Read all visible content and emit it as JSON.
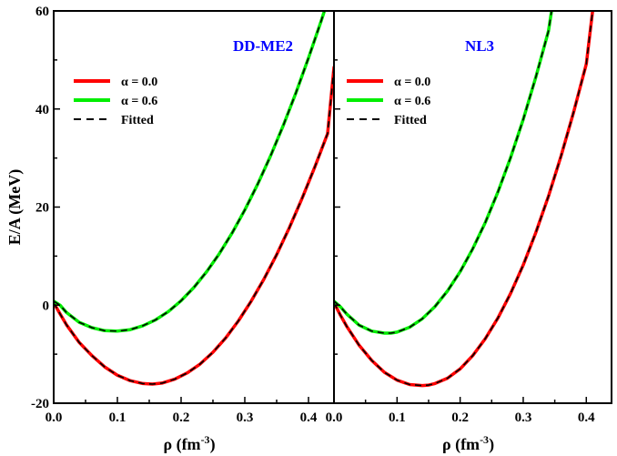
{
  "chart_data": [
    {
      "type": "line",
      "title": "DD-ME2",
      "title_color": "#0000ff",
      "xlabel": "ρ (fm",
      "xlabel_sup": "-3",
      "xlabel_tail": ")",
      "ylabel": "E/A (MeV)",
      "xlim": [
        0.0,
        0.44
      ],
      "ylim": [
        -20,
        60
      ],
      "x_ticks": [
        "0.0",
        "0.1",
        "0.2",
        "0.3",
        "0.4"
      ],
      "y_ticks": [
        "-20",
        "0",
        "20",
        "40",
        "60"
      ],
      "grid": false,
      "legend_position": "top-left",
      "legend": [
        "α = 0.0",
        "α = 0.6",
        "Fitted"
      ],
      "series": [
        {
          "name": "α = 0.0",
          "color": "#ff0000",
          "x": [
            0.0,
            0.01,
            0.02,
            0.04,
            0.06,
            0.08,
            0.1,
            0.12,
            0.14,
            0.155,
            0.17,
            0.19,
            0.21,
            0.23,
            0.25,
            0.27,
            0.29,
            0.31,
            0.33,
            0.35,
            0.37,
            0.39,
            0.41,
            0.43,
            0.44
          ],
          "y": [
            0.5,
            -1.8,
            -4.0,
            -7.6,
            -10.3,
            -12.6,
            -14.3,
            -15.4,
            -16.0,
            -16.1,
            -15.9,
            -15.1,
            -13.8,
            -12.0,
            -9.6,
            -6.7,
            -3.2,
            0.8,
            5.3,
            10.3,
            15.8,
            21.8,
            28.2,
            35.0,
            48.5
          ]
        },
        {
          "name": "α = 0.6",
          "color": "#00ee00",
          "x": [
            0.0,
            0.01,
            0.02,
            0.04,
            0.06,
            0.08,
            0.1,
            0.12,
            0.14,
            0.16,
            0.18,
            0.2,
            0.22,
            0.24,
            0.26,
            0.28,
            0.3,
            0.32,
            0.34,
            0.36,
            0.38,
            0.4,
            0.42,
            0.43
          ],
          "y": [
            0.8,
            0.0,
            -1.5,
            -3.5,
            -4.6,
            -5.2,
            -5.3,
            -5.0,
            -4.2,
            -3.0,
            -1.3,
            0.9,
            3.6,
            6.8,
            10.5,
            14.7,
            19.4,
            24.6,
            30.3,
            36.5,
            43.2,
            50.4,
            58.0,
            62.0
          ]
        }
      ],
      "fitted": {
        "name": "Fitted",
        "color": "#000000",
        "style": "dashed"
      }
    },
    {
      "type": "line",
      "title": "NL3",
      "title_color": "#0000ff",
      "xlabel": "ρ (fm",
      "xlabel_sup": "-3",
      "xlabel_tail": ")",
      "xlim": [
        0.0,
        0.44
      ],
      "ylim": [
        -20,
        60
      ],
      "x_ticks": [
        "0.0",
        "0.1",
        "0.2",
        "0.3",
        "0.4"
      ],
      "grid": false,
      "legend_position": "top-left",
      "legend": [
        "α = 0.0",
        "α = 0.6",
        "Fitted"
      ],
      "series": [
        {
          "name": "α = 0.0",
          "color": "#ff0000",
          "x": [
            0.0,
            0.01,
            0.02,
            0.04,
            0.06,
            0.08,
            0.1,
            0.12,
            0.14,
            0.15,
            0.16,
            0.18,
            0.2,
            0.22,
            0.24,
            0.26,
            0.28,
            0.3,
            0.32,
            0.34,
            0.36,
            0.38,
            0.4,
            0.41
          ],
          "y": [
            0.5,
            -2.0,
            -4.3,
            -8.2,
            -11.3,
            -13.7,
            -15.3,
            -16.2,
            -16.4,
            -16.3,
            -16.0,
            -14.9,
            -13.0,
            -10.3,
            -6.8,
            -2.6,
            2.4,
            8.2,
            14.8,
            22.2,
            30.4,
            39.4,
            49.2,
            60.0
          ]
        },
        {
          "name": "α = 0.6",
          "color": "#00ee00",
          "x": [
            0.0,
            0.01,
            0.02,
            0.04,
            0.06,
            0.08,
            0.09,
            0.1,
            0.12,
            0.14,
            0.16,
            0.18,
            0.2,
            0.22,
            0.24,
            0.26,
            0.28,
            0.3,
            0.32,
            0.34,
            0.345
          ],
          "y": [
            0.8,
            -0.3,
            -1.8,
            -4.1,
            -5.3,
            -5.7,
            -5.7,
            -5.5,
            -4.5,
            -2.8,
            -0.3,
            2.9,
            6.8,
            11.5,
            16.9,
            23.1,
            30.1,
            37.9,
            46.5,
            55.9,
            60.0
          ]
        }
      ],
      "fitted": {
        "name": "Fitted",
        "color": "#000000",
        "style": "dashed"
      }
    }
  ]
}
